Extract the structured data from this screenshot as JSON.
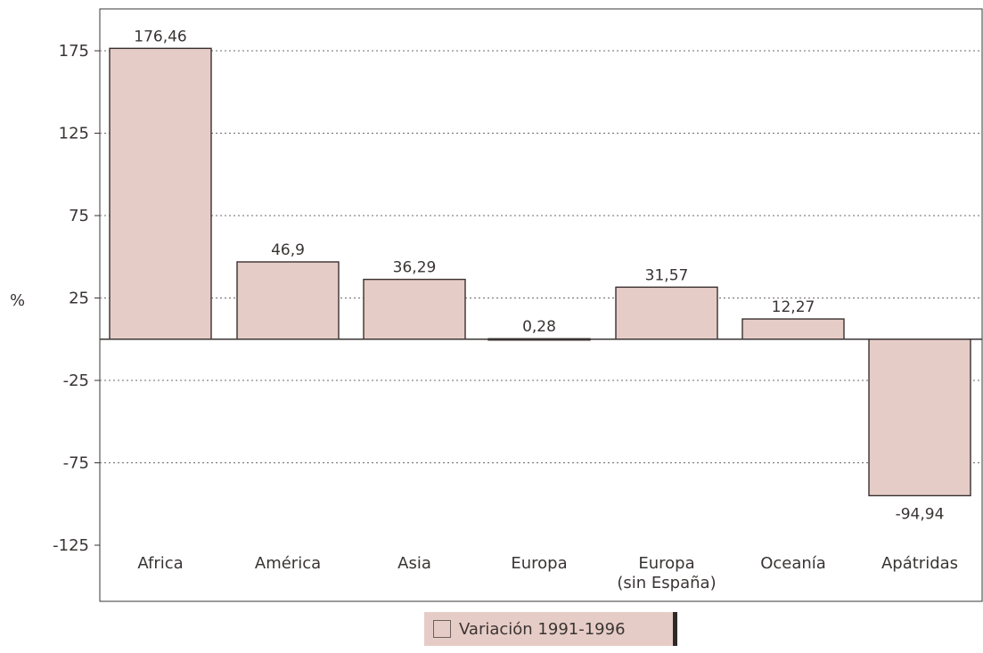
{
  "chart_data": {
    "type": "bar",
    "ylabel": "%",
    "categories": [
      "Africa",
      "América",
      "Asia",
      "Europa",
      "Europa\n(sin España)",
      "Oceanía",
      "Apátridas"
    ],
    "series": [
      {
        "name": "Variación 1991-1996",
        "values": [
          176.46,
          46.9,
          36.29,
          0.28,
          31.57,
          12.27,
          -94.94
        ],
        "labels": [
          "176,46",
          "46,9",
          "36,29",
          "0,28",
          "31,57",
          "12,27",
          "-94,94"
        ]
      }
    ],
    "yticks": [
      175,
      125,
      75,
      25,
      -25,
      -75,
      -125
    ],
    "ylim": [
      -125,
      175
    ],
    "grid": "dotted-horizontal",
    "legend_position": "bottom-center",
    "colors": {
      "bar": "#e6ccc6",
      "bar_stroke": "#3a3030",
      "axis": "#3a3434",
      "grid": "#6e6868"
    }
  }
}
